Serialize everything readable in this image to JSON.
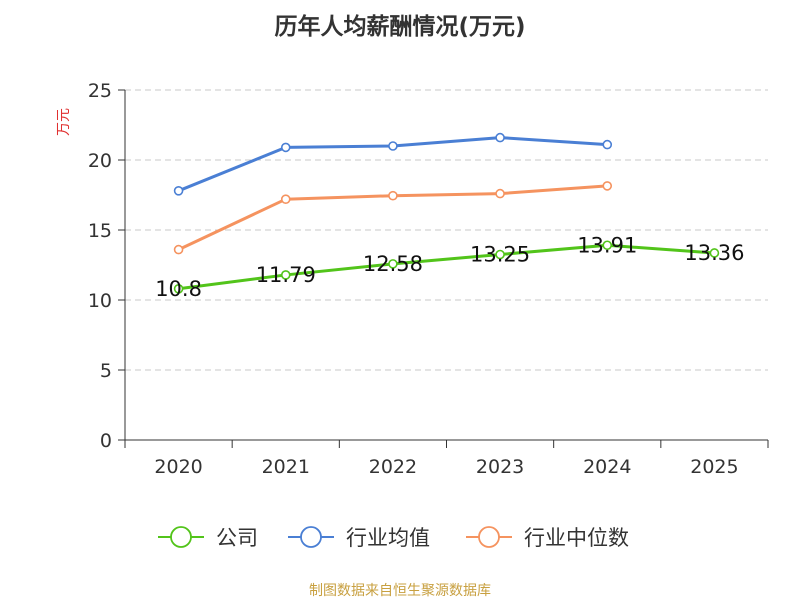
{
  "chart_data": {
    "type": "line",
    "title": "历年人均薪酬情况(万元)",
    "ylabel": "万元",
    "xlabel": "",
    "categories": [
      "2020",
      "2021",
      "2022",
      "2023",
      "2024",
      "2025"
    ],
    "ylim": [
      0,
      25
    ],
    "yticks": [
      0,
      5,
      10,
      15,
      20,
      25
    ],
    "grid": true,
    "legend_position": "bottom",
    "series": [
      {
        "name": "公司",
        "color": "#52c41a",
        "values": [
          10.8,
          11.79,
          12.58,
          13.25,
          13.91,
          13.36
        ],
        "labels": [
          "10.8",
          "11.79",
          "12.58",
          "13.25",
          "13.91",
          "13.36"
        ]
      },
      {
        "name": "行业均值",
        "color": "#4a7fd4",
        "values": [
          17.8,
          20.9,
          21.0,
          21.6,
          21.1,
          null
        ]
      },
      {
        "name": "行业中位数",
        "color": "#f5935f",
        "values": [
          13.6,
          17.2,
          17.45,
          17.6,
          18.15,
          null
        ]
      }
    ]
  },
  "source": "制图数据来自恒生聚源数据库",
  "colors": {
    "title": "#333333",
    "ylabel": "#e03030",
    "axis": "#333333",
    "grid": "#c8c8c8",
    "source": "#c8a040"
  }
}
